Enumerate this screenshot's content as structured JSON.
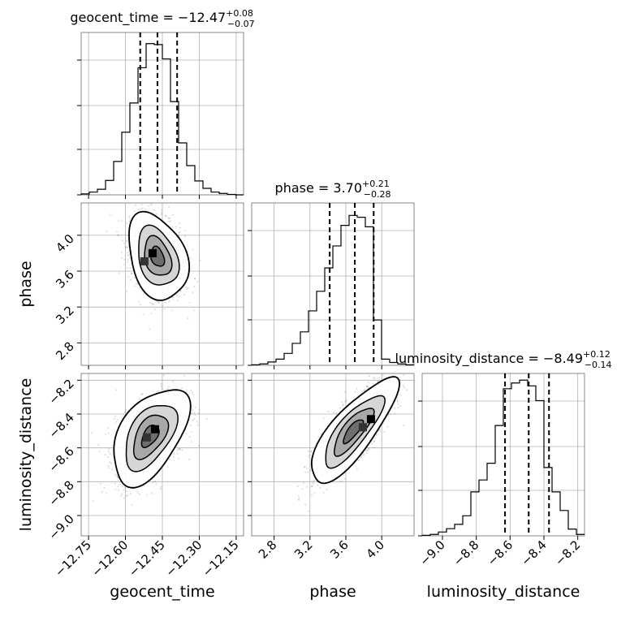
{
  "chart_data": {
    "type": "corner",
    "parameters": [
      "geocent_time",
      "phase",
      "luminosity_distance"
    ],
    "titles": [
      {
        "param": "geocent_time",
        "text": "geocent_time = −12.47",
        "plus": "+0.08",
        "minus": "−0.07"
      },
      {
        "param": "phase",
        "text": "phase = 3.70",
        "plus": "+0.21",
        "minus": "−0.28"
      },
      {
        "param": "luminosity_distance",
        "text": "luminosity_distance = −8.49",
        "plus": "+0.12",
        "minus": "−0.14"
      }
    ],
    "axes": {
      "geocent_time": {
        "range": [
          -12.78,
          -12.12
        ],
        "ticks": [
          -12.75,
          -12.6,
          -12.45,
          -12.3,
          -12.15
        ],
        "tick_labels": [
          "−12.75",
          "−12.60",
          "−12.45",
          "−12.30",
          "−12.15"
        ]
      },
      "phase": {
        "range": [
          2.55,
          4.36
        ],
        "ticks": [
          2.8,
          3.2,
          3.6,
          4.0
        ],
        "tick_labels": [
          "2.8",
          "3.2",
          "3.6",
          "4.0"
        ]
      },
      "luminosity_distance": {
        "range": [
          -9.12,
          -8.16
        ],
        "ticks": [
          -9.0,
          -8.8,
          -8.6,
          -8.4,
          -8.2
        ],
        "tick_labels": [
          "−9.0",
          "−8.8",
          "−8.6",
          "−8.4",
          "−8.2"
        ]
      }
    },
    "histograms": {
      "geocent_time": {
        "edges": [
          -12.78,
          -12.747,
          -12.714,
          -12.681,
          -12.648,
          -12.615,
          -12.582,
          -12.549,
          -12.516,
          -12.483,
          -12.45,
          -12.417,
          -12.384,
          -12.351,
          -12.318,
          -12.285,
          -12.252,
          -12.219,
          -12.186,
          -12.153,
          -12.12
        ],
        "counts": [
          0.2,
          0.6,
          1.2,
          3.1,
          7.2,
          13.5,
          19.8,
          27.4,
          32.6,
          32.4,
          29.3,
          20.1,
          11.2,
          6.3,
          3.0,
          1.4,
          0.6,
          0.3,
          0.1,
          0.0
        ],
        "ylim": [
          0,
          35
        ],
        "quantiles": [
          -12.54,
          -12.47,
          -12.39
        ]
      },
      "phase": {
        "edges": [
          2.55,
          2.6405,
          2.731,
          2.8215,
          2.912,
          3.0025,
          3.093,
          3.1835,
          3.274,
          3.3645,
          3.455,
          3.5455,
          3.636,
          3.7265,
          3.817,
          3.9075,
          3.998,
          4.0885,
          4.179,
          4.2695,
          4.36
        ],
        "counts": [
          0.1,
          0.3,
          0.7,
          1.3,
          2.5,
          4.6,
          7.0,
          11.4,
          15.5,
          20.4,
          25.0,
          29.3,
          31.4,
          31.0,
          29.0,
          9.5,
          1.3,
          0.6,
          0.3,
          0.1
        ],
        "ylim": [
          0,
          34
        ],
        "quantiles": [
          3.42,
          3.7,
          3.91
        ]
      },
      "luminosity_distance": {
        "edges": [
          -9.12,
          -9.072,
          -9.024,
          -8.976,
          -8.928,
          -8.88,
          -8.832,
          -8.784,
          -8.736,
          -8.688,
          -8.64,
          -8.592,
          -8.544,
          -8.496,
          -8.448,
          -8.4,
          -8.352,
          -8.304,
          -8.256,
          -8.208,
          -8.16
        ],
        "counts": [
          0.1,
          0.3,
          0.8,
          1.5,
          2.4,
          4.2,
          9.2,
          11.7,
          15.2,
          23.1,
          30.8,
          32.0,
          32.6,
          31.4,
          28.3,
          14.3,
          9.2,
          5.3,
          1.4,
          0.3
        ],
        "ylim": [
          0,
          34
        ],
        "quantiles": [
          -8.63,
          -8.49,
          -8.37
        ]
      }
    },
    "joint": [
      {
        "x": "geocent_time",
        "y": "phase",
        "center": [
          -12.47,
          3.76
        ],
        "sigma": [
          0.055,
          0.22
        ],
        "rho": -0.3,
        "peak": [
          -12.49,
          3.8
        ]
      },
      {
        "x": "geocent_time",
        "y": "luminosity_distance",
        "center": [
          -12.5,
          -8.53
        ],
        "sigma": [
          0.07,
          0.13
        ],
        "rho": 0.5,
        "peak": [
          -12.48,
          -8.49
        ]
      },
      {
        "x": "phase",
        "y": "luminosity_distance",
        "center": [
          3.68,
          -8.5
        ],
        "sigma": [
          0.22,
          0.14
        ],
        "rho": 0.8,
        "peak": [
          3.88,
          -8.43
        ]
      }
    ],
    "xlabels": [
      "geocent_time",
      "phase",
      "luminosity_distance"
    ],
    "ylabels": [
      "",
      "phase",
      "luminosity_distance"
    ],
    "grid": true
  }
}
